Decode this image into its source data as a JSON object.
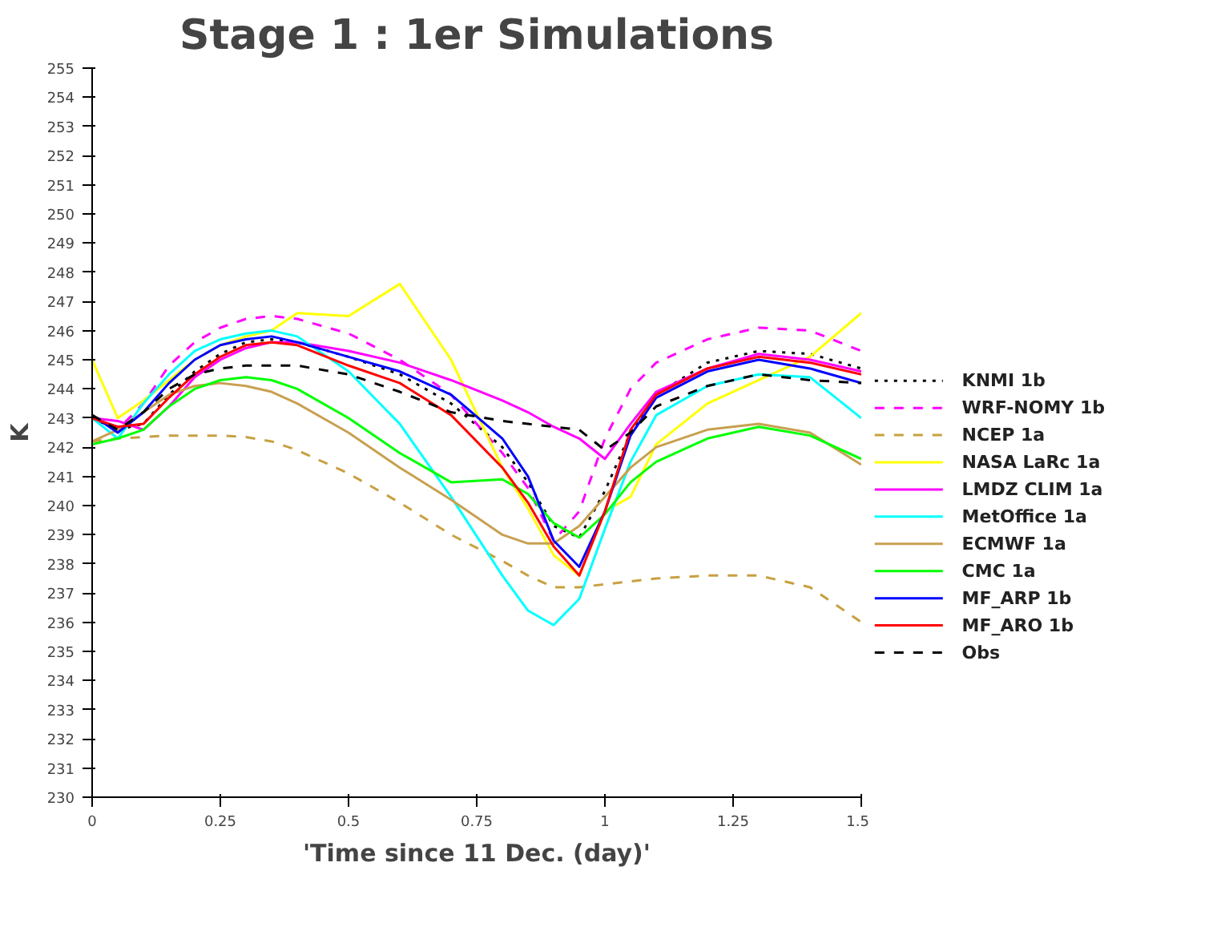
{
  "chart_data": {
    "type": "line",
    "title": "Stage 1 : 1er Simulations",
    "xlabel": "'Time since 11 Dec. (day)'",
    "ylabel": "K",
    "x": [
      0,
      0.05,
      0.1,
      0.15,
      0.2,
      0.25,
      0.3,
      0.35,
      0.4,
      0.5,
      0.6,
      0.7,
      0.8,
      0.85,
      0.9,
      0.95,
      1.0,
      1.05,
      1.1,
      1.2,
      1.3,
      1.4,
      1.5
    ],
    "xlim": [
      0,
      1.5
    ],
    "xticks": [
      0,
      0.25,
      0.5,
      0.75,
      1,
      1.25,
      1.5
    ],
    "ylim": [
      230,
      255
    ],
    "yticks": [
      230,
      231,
      232,
      233,
      234,
      235,
      236,
      237,
      238,
      239,
      240,
      241,
      242,
      243,
      244,
      245,
      246,
      247,
      248,
      249,
      250,
      251,
      252,
      253,
      254,
      255
    ],
    "grid": false,
    "legend": "right",
    "marker": "none",
    "series": [
      {
        "name": "KNMI 1b",
        "color": "#000000",
        "line_style": "dotted",
        "values": [
          243.0,
          242.6,
          242.8,
          243.8,
          244.6,
          245.2,
          245.6,
          245.7,
          245.6,
          245.1,
          244.5,
          243.5,
          242.0,
          240.8,
          239.3,
          238.9,
          240.5,
          242.5,
          243.8,
          244.9,
          245.3,
          245.2,
          244.7
        ]
      },
      {
        "name": "WRF-NOMY 1b",
        "color": "#ff00ff",
        "line_style": "dashed",
        "values": [
          243.0,
          242.6,
          243.5,
          244.8,
          245.6,
          246.1,
          246.4,
          246.5,
          246.4,
          245.9,
          245.0,
          243.8,
          241.8,
          240.6,
          238.8,
          239.8,
          242.3,
          244.0,
          244.9,
          245.7,
          246.1,
          246.0,
          245.3
        ]
      },
      {
        "name": "NCEP 1a",
        "color": "#c8a040",
        "line_style": "dashed",
        "values": [
          242.2,
          242.3,
          242.35,
          242.4,
          242.4,
          242.4,
          242.35,
          242.2,
          241.9,
          241.1,
          240.1,
          239.0,
          238.1,
          237.6,
          237.2,
          237.2,
          237.3,
          237.4,
          237.5,
          237.6,
          237.6,
          237.2,
          236.0
        ]
      },
      {
        "name": "NASA LaRc 1a",
        "color": "#ffff00",
        "line_style": "solid",
        "values": [
          245.0,
          243.0,
          243.6,
          244.3,
          245.0,
          245.5,
          245.8,
          246.0,
          246.6,
          246.5,
          247.6,
          245.0,
          241.3,
          239.9,
          238.3,
          237.6,
          239.8,
          240.3,
          242.1,
          243.5,
          244.3,
          245.1,
          246.6
        ]
      },
      {
        "name": "LMDZ CLIM 1a",
        "color": "#ff00ff",
        "line_style": "solid",
        "values": [
          243.0,
          242.9,
          242.6,
          243.4,
          244.4,
          245.0,
          245.4,
          245.6,
          245.6,
          245.3,
          244.9,
          244.3,
          243.6,
          243.2,
          242.7,
          242.3,
          241.6,
          242.8,
          243.9,
          244.7,
          245.2,
          245.0,
          244.6
        ]
      },
      {
        "name": "MetOffice 1a",
        "color": "#00ffff",
        "line_style": "solid",
        "values": [
          243.0,
          242.3,
          243.5,
          244.5,
          245.3,
          245.7,
          245.9,
          246.0,
          245.8,
          244.6,
          242.8,
          240.3,
          237.6,
          236.4,
          235.9,
          236.8,
          239.2,
          241.5,
          243.1,
          244.1,
          244.5,
          244.4,
          243.0
        ]
      },
      {
        "name": "ECMWF 1a",
        "color": "#c8a050",
        "line_style": "solid",
        "values": [
          242.2,
          242.6,
          243.2,
          243.8,
          244.1,
          244.2,
          244.1,
          243.9,
          243.5,
          242.5,
          241.3,
          240.2,
          239.0,
          238.7,
          238.7,
          239.3,
          240.3,
          241.3,
          242.0,
          242.6,
          242.8,
          242.5,
          241.4
        ]
      },
      {
        "name": "CMC 1a",
        "color": "#00ff00",
        "line_style": "solid",
        "values": [
          242.1,
          242.3,
          242.6,
          243.4,
          244.0,
          244.3,
          244.4,
          244.3,
          244.0,
          243.0,
          241.8,
          240.8,
          240.9,
          240.4,
          239.4,
          238.9,
          239.7,
          240.8,
          241.5,
          242.3,
          242.7,
          242.4,
          241.6
        ]
      },
      {
        "name": "MF_ARP 1b",
        "color": "#0000ff",
        "line_style": "solid",
        "values": [
          243.1,
          242.5,
          243.2,
          244.2,
          245.0,
          245.5,
          245.7,
          245.8,
          245.6,
          245.1,
          244.6,
          243.8,
          242.3,
          241.0,
          238.8,
          237.9,
          239.8,
          242.4,
          243.7,
          244.6,
          245.0,
          244.7,
          244.2
        ]
      },
      {
        "name": "MF_ARO 1b",
        "color": "#ff0000",
        "line_style": "solid",
        "values": [
          243.0,
          242.7,
          242.8,
          243.7,
          244.5,
          245.1,
          245.5,
          245.6,
          245.5,
          244.8,
          244.2,
          243.1,
          241.3,
          240.1,
          238.6,
          237.6,
          239.8,
          242.6,
          243.8,
          244.7,
          245.1,
          244.9,
          244.5
        ]
      },
      {
        "name": "Obs",
        "color": "#000000",
        "line_style": "dashed",
        "values": [
          243.1,
          242.6,
          243.2,
          244.0,
          244.5,
          244.7,
          244.8,
          244.8,
          244.8,
          244.5,
          243.9,
          243.2,
          242.9,
          242.8,
          242.7,
          242.6,
          241.9,
          242.5,
          243.4,
          244.1,
          244.5,
          244.3,
          244.2
        ]
      }
    ]
  }
}
